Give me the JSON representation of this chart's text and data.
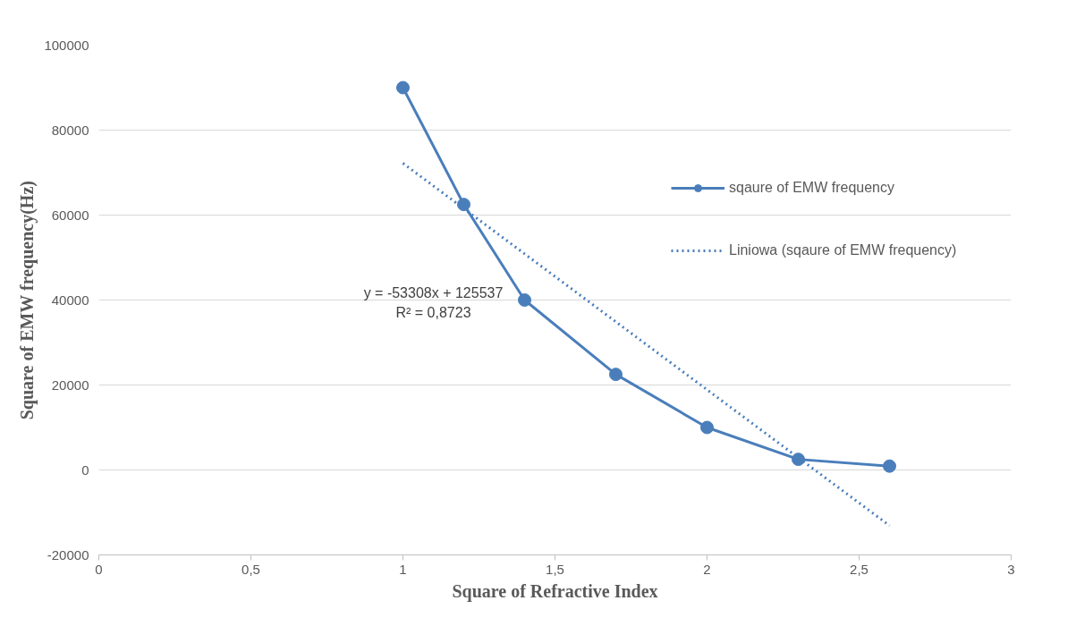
{
  "chart_data": {
    "type": "line",
    "xlabel": "Square of Refractive Index",
    "ylabel": "Square of EMW frequency(Hz)",
    "x": [
      1,
      1.2,
      1.4,
      1.7,
      2,
      2.3,
      2.6
    ],
    "series": [
      {
        "name": "sqaure of EMW frequency",
        "color": "#4a7ebb",
        "values": [
          90000,
          62500,
          40000,
          22500,
          10000,
          2500,
          900
        ],
        "marker": "circle",
        "line_style": "solid"
      },
      {
        "name": "Liniowa (sqaure of EMW frequency)",
        "color": "#4a7ebb",
        "x": [
          1,
          2.6
        ],
        "values": [
          72200,
          -13100
        ],
        "marker": "none",
        "line_style": "dotted"
      }
    ],
    "annotations": [
      "y = -53308x + 125537",
      "R² = 0,8723"
    ],
    "xlim": [
      0,
      3
    ],
    "xticks": [
      0,
      {
        "value": 0.5,
        "label": "0,5"
      },
      1,
      {
        "value": 1.5,
        "label": "1,5"
      },
      2,
      {
        "value": 2.5,
        "label": "2,5"
      },
      3
    ],
    "ylim": [
      -20000,
      100000
    ],
    "yticks": [
      -20000,
      0,
      20000,
      40000,
      60000,
      80000,
      100000
    ],
    "grid": "y",
    "legend": "right"
  }
}
